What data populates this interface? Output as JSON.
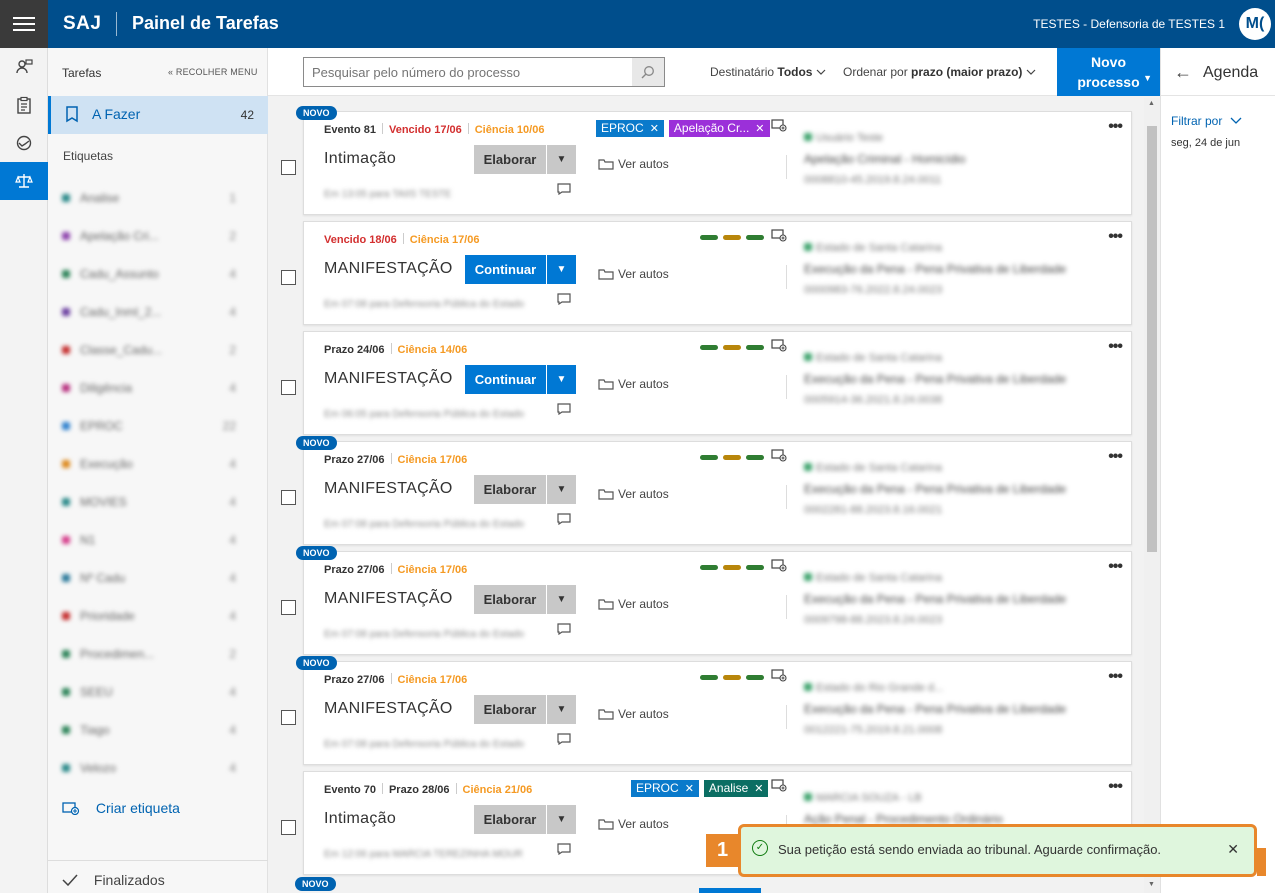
{
  "header": {
    "brand": "SAJ",
    "title": "Painel de Tarefas",
    "org": "TESTES - Defensoria de TESTES 1",
    "avatar": "M("
  },
  "sidebar": {
    "heading": "Tarefas",
    "collapse": "« RECOLHER MENU",
    "active_item": {
      "label": "A Fazer",
      "count": "42"
    },
    "tags_heading": "Etiquetas",
    "tags": [
      {
        "name": "Analise",
        "count": "1",
        "color": "#2b8a8a"
      },
      {
        "name": "Apelação Cri...",
        "count": "2",
        "color": "#8e44ad"
      },
      {
        "name": "Cadu_Assunto",
        "count": "4",
        "color": "#2f855a"
      },
      {
        "name": "Cadu_Inml_2...",
        "count": "4",
        "color": "#6b3fa0"
      },
      {
        "name": "Classe_Cadu...",
        "count": "2",
        "color": "#c53030"
      },
      {
        "name": "Diligência",
        "count": "4",
        "color": "#b83280"
      },
      {
        "name": "EPROC",
        "count": "22",
        "color": "#3182ce"
      },
      {
        "name": "Execução",
        "count": "4",
        "color": "#dd8a1e"
      },
      {
        "name": "MOVIES",
        "count": "4",
        "color": "#2b8a8a"
      },
      {
        "name": "N1",
        "count": "4",
        "color": "#d53f8c"
      },
      {
        "name": "Nº Cadu",
        "count": "4",
        "color": "#2c7a9b"
      },
      {
        "name": "Prioridade",
        "count": "4",
        "color": "#c53030"
      },
      {
        "name": "Procedimen...",
        "count": "2",
        "color": "#2f855a"
      },
      {
        "name": "SEEU",
        "count": "4",
        "color": "#2f855a"
      },
      {
        "name": "Tiago",
        "count": "4",
        "color": "#2f855a"
      },
      {
        "name": "Velozo",
        "count": "4",
        "color": "#2b8a8a"
      }
    ],
    "create_tag": "Criar etiqueta",
    "finalized": "Finalizados"
  },
  "toolbar": {
    "search_placeholder": "Pesquisar pelo número do processo",
    "dest_label": "Destinatário",
    "dest_value": "Todos",
    "order_label": "Ordenar por",
    "order_value": "prazo (maior prazo)",
    "new_process_l1": "Novo",
    "new_process_l2": "processo"
  },
  "agenda": {
    "title": "Agenda",
    "filter": "Filtrar por",
    "date": "seg, 24 de jun"
  },
  "cards": [
    {
      "novo": "NOVO",
      "m1": "Evento 81",
      "m2": "Vencido 17/06",
      "m3": "Ciência 10/06",
      "title": "Intimação",
      "action": "Elaborar",
      "ver": "Ver autos",
      "chips": [
        {
          "label": "EPROC",
          "color": "#0a7acb"
        },
        {
          "label": "Apelação Cr...",
          "color": "#9b30d9"
        }
      ],
      "blur_sub": "Em 13:05 para TAIIS TESTE",
      "r1": "Usuário Teste",
      "r2": "Apelação Criminal - Homicídio",
      "r3": "0008810-45.2019.8.24.0011"
    },
    {
      "novo": "",
      "m1": "",
      "m2": "Vencido 18/06",
      "m3": "Ciência 17/06",
      "title": "MANIFESTAÇÃO",
      "action": "Continuar",
      "ver": "Ver autos",
      "chips": [],
      "blur_sub": "Em 07:08 para Defensoria Pública do Estado",
      "r1": "Estado de Santa Catarina",
      "r2": "Execução da Pena - Pena Privativa de Liberdade",
      "r3": "0000983-76.2022.8.24.0023"
    },
    {
      "novo": "",
      "m1": "",
      "m2": "Prazo 24/06",
      "m3": "Ciência 14/06",
      "title": "MANIFESTAÇÃO",
      "action": "Continuar",
      "ver": "Ver autos",
      "chips": [],
      "blur_sub": "Em 06:05 para Defensoria Pública do Estado",
      "r1": "Estado de Santa Catarina",
      "r2": "Execução da Pena - Pena Privativa de Liberdade",
      "r3": "0005914-36.2021.8.24.0038"
    },
    {
      "novo": "NOVO",
      "m1": "",
      "m2": "Prazo 27/06",
      "m3": "Ciência 17/06",
      "title": "MANIFESTAÇÃO",
      "action": "Elaborar",
      "ver": "Ver autos",
      "chips": [],
      "blur_sub": "Em 07:08 para Defensoria Pública do Estado",
      "r1": "Estado de Santa Catarina",
      "r2": "Execução da Pena - Pena Privativa de Liberdade",
      "r3": "0002281-88.2023.8.16.0021"
    },
    {
      "novo": "NOVO",
      "m1": "",
      "m2": "Prazo 27/06",
      "m3": "Ciência 17/06",
      "title": "MANIFESTAÇÃO",
      "action": "Elaborar",
      "ver": "Ver autos",
      "chips": [],
      "blur_sub": "Em 07:08 para Defensoria Pública do Estado",
      "r1": "Estado de Santa Catarina",
      "r2": "Execução da Pena - Pena Privativa de Liberdade",
      "r3": "0009798-88.2023.8.24.0023"
    },
    {
      "novo": "NOVO",
      "m1": "",
      "m2": "Prazo 27/06",
      "m3": "Ciência 17/06",
      "title": "MANIFESTAÇÃO",
      "action": "Elaborar",
      "ver": "Ver autos",
      "chips": [],
      "blur_sub": "Em 07:08 para Defensoria Pública do Estado",
      "r1": "Estado do Rio Grande d...",
      "r2": "Execução da Pena - Pena Privativa de Liberdade",
      "r3": "0012221-75.2019.8.21.0008"
    },
    {
      "novo": "",
      "m1": "Evento 70",
      "m2": "Prazo 28/06",
      "m3": "Ciência 21/06",
      "title": "Intimação",
      "action": "Elaborar",
      "ver": "Ver autos",
      "chips": [
        {
          "label": "EPROC",
          "color": "#0a7acb"
        },
        {
          "label": "Analise",
          "color": "#0b6e63"
        }
      ],
      "blur_sub": "Em 12:06 para MARCIA TEREZINHA MOUR",
      "r1": "MARCIA SOUZA - LB",
      "r2": "Ação Penal - Procedimento Ordinário",
      "r3": ""
    }
  ],
  "toast": {
    "marker": "1",
    "message": "Sua petição está sendo enviada ao tribunal. Aguarde confirmação."
  },
  "partial_novo": "NOVO"
}
